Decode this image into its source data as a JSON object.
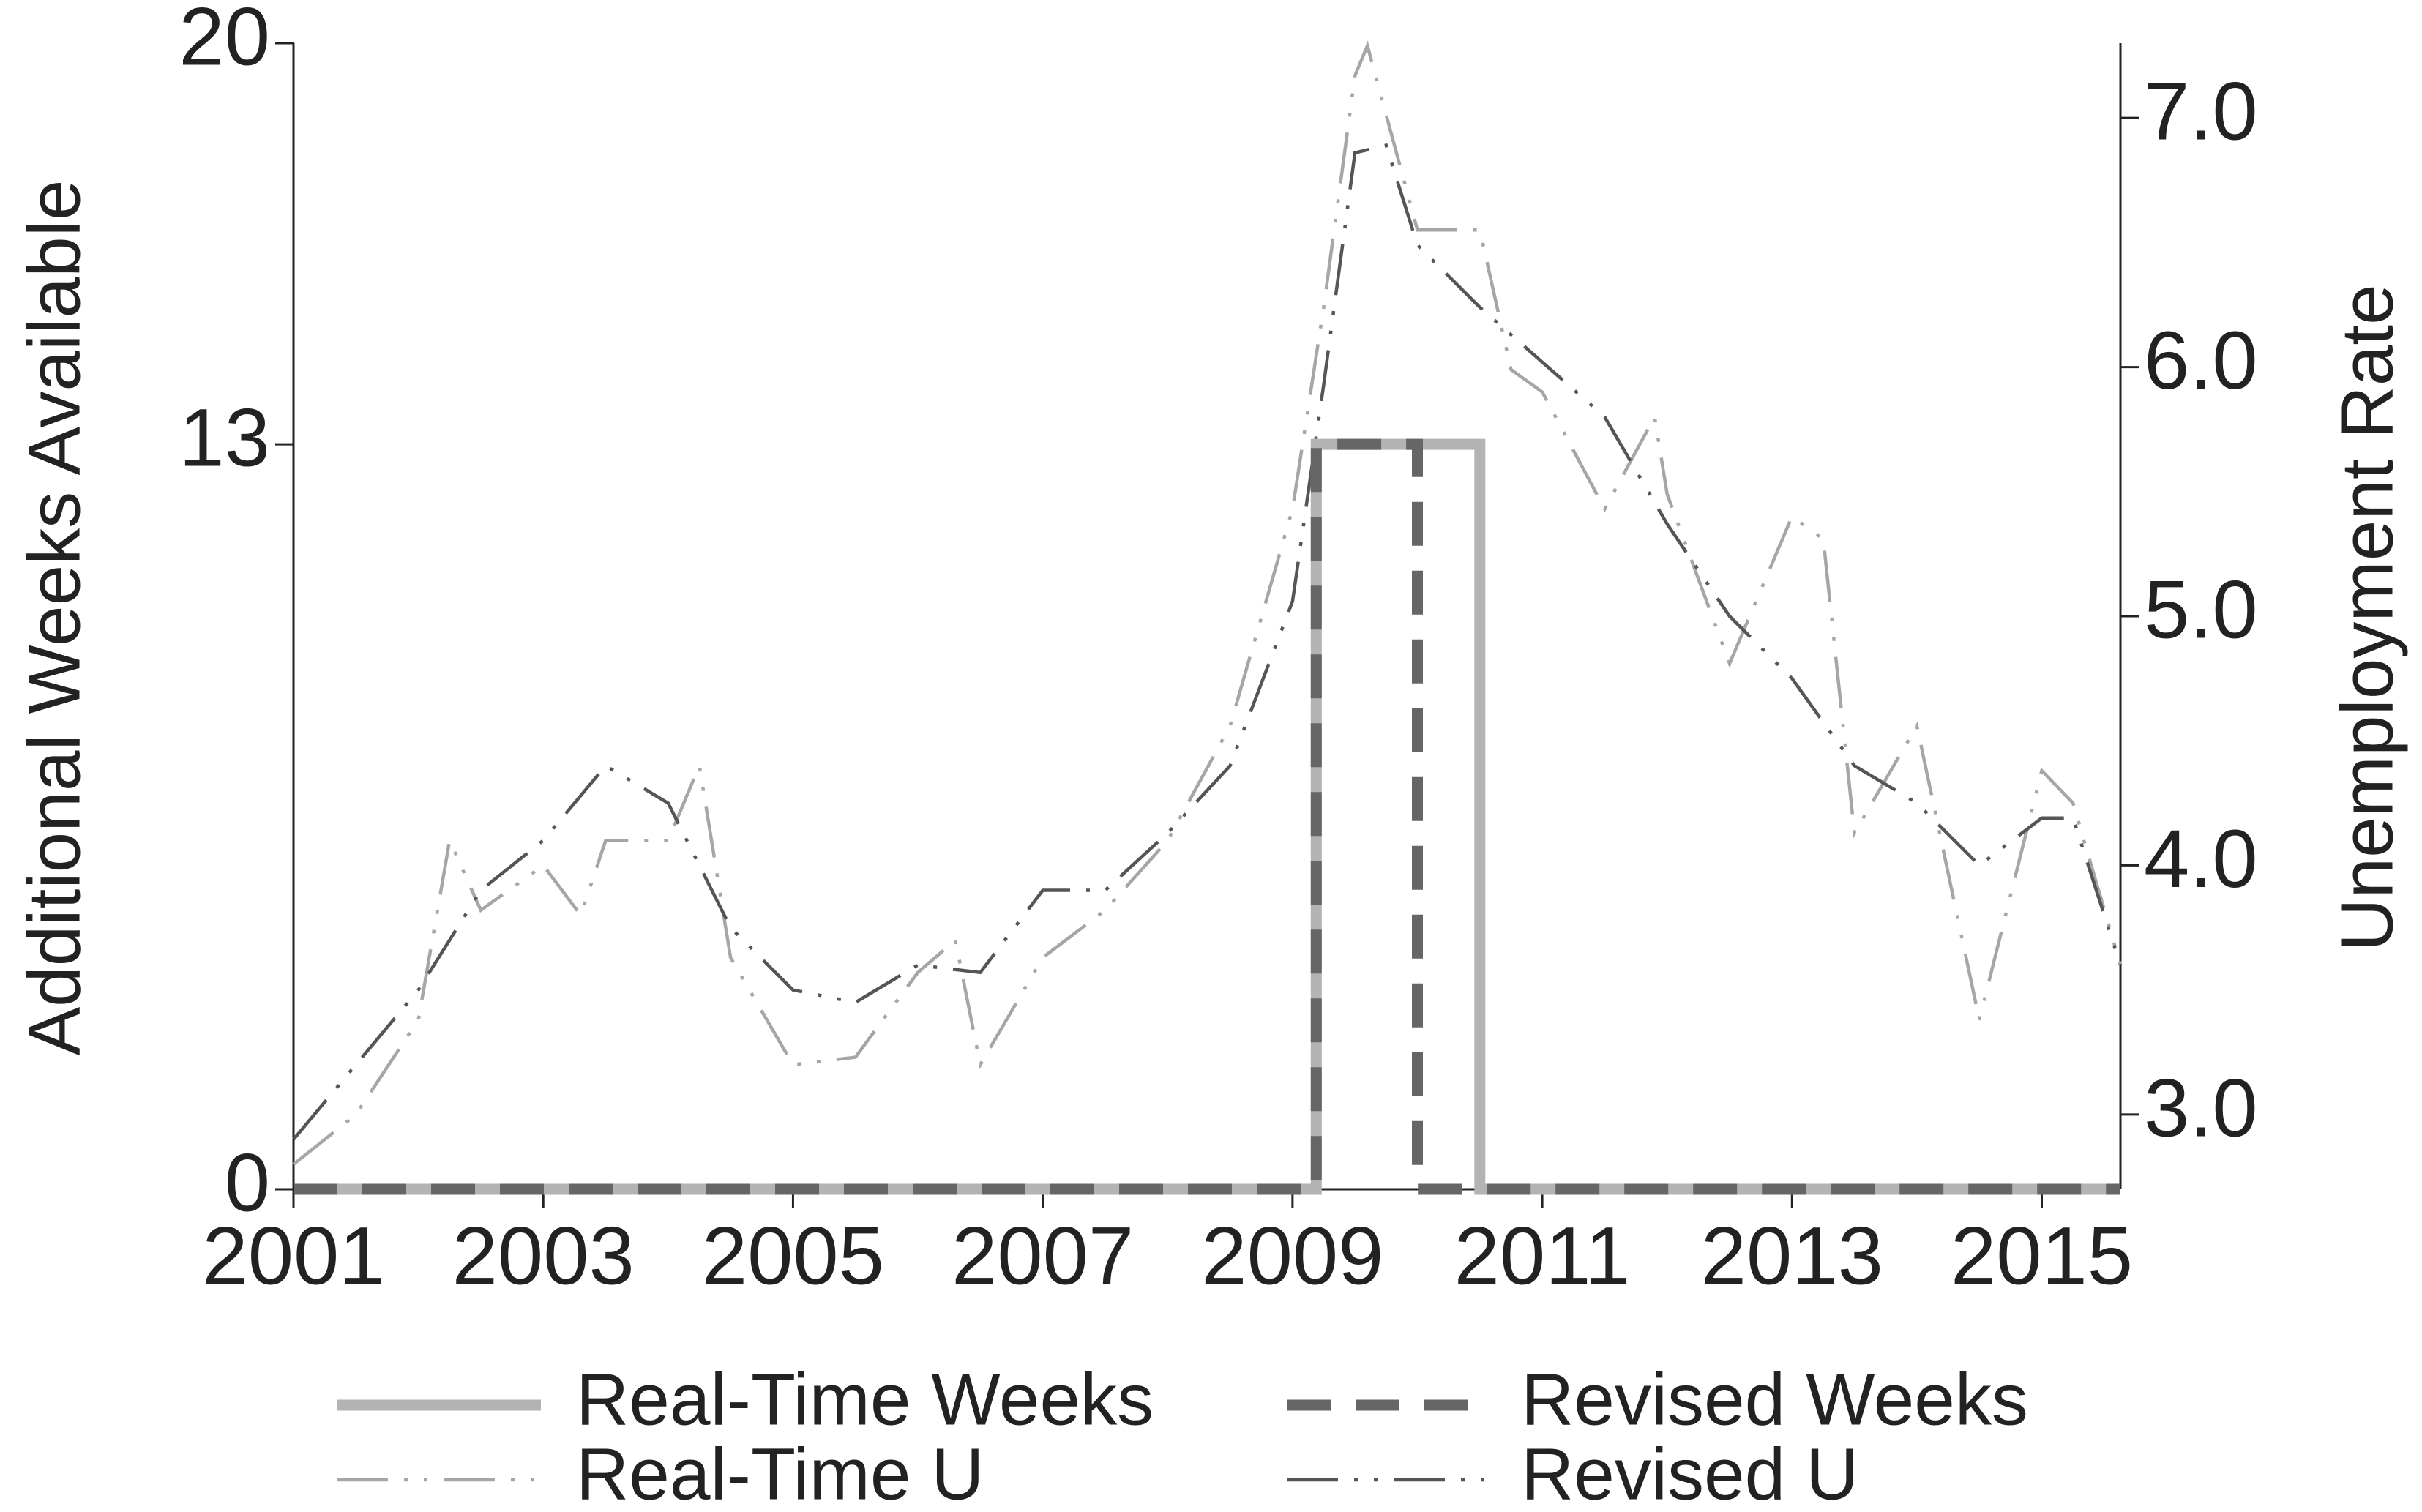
{
  "chart_data": {
    "type": "line",
    "ylabel": "Additional Weeks Available",
    "y2label": "Unemployment Rate",
    "xlim": [
      2001,
      2015.63
    ],
    "xticks": [
      2001,
      2003,
      2005,
      2007,
      2009,
      2011,
      2013,
      2015
    ],
    "ylim": [
      0,
      20
    ],
    "yticks": [
      0,
      13,
      20
    ],
    "y2lim": [
      2.7,
      7.3
    ],
    "y2ticks": [
      {
        "value": 3,
        "label": "3.0"
      },
      {
        "value": 4,
        "label": "4.0"
      },
      {
        "value": 5,
        "label": "5.0"
      },
      {
        "value": 6,
        "label": "6.0"
      },
      {
        "value": 7,
        "label": "7.0"
      }
    ],
    "grid": false,
    "legend": "bottom",
    "series": [
      {
        "name": "Real-Time Weeks",
        "color": "#b3b3b3",
        "linestyle": "solid",
        "x": [
          2001,
          2009.19,
          2009.19,
          2010.5,
          2010.5,
          2015.63
        ],
        "values": [
          0,
          0,
          13,
          13,
          0,
          0
        ]
      },
      {
        "name": "Revised Weeks",
        "color": "#666666",
        "linestyle": "dashed",
        "x": [
          2001,
          2009.19,
          2009.19,
          2010.0,
          2010.0,
          2015.63
        ],
        "values": [
          0,
          0,
          13,
          13,
          0,
          0
        ]
      },
      {
        "name": "Real-Time U",
        "color": "#a6a6a6",
        "linestyle": "dashdot",
        "axis": "y2",
        "x": [
          2001,
          2001.5,
          2002,
          2002.25,
          2002.5,
          2003,
          2003.3,
          2003.5,
          2004,
          2004.25,
          2004.5,
          2005,
          2005.5,
          2006,
          2006.3,
          2006.5,
          2007,
          2007.5,
          2008,
          2008.5,
          2009,
          2009.25,
          2009.5,
          2009.6,
          2010,
          2010.5,
          2010.75,
          2011,
          2011.5,
          2011.9,
          2012,
          2012.5,
          2013,
          2013.25,
          2013.5,
          2014,
          2014.5,
          2015,
          2015.25,
          2015.63
        ],
        "values": [
          2.8,
          3.0,
          3.38,
          4.1,
          3.82,
          4.0,
          3.8,
          4.1,
          4.1,
          4.4,
          3.63,
          3.2,
          3.23,
          3.57,
          3.7,
          3.2,
          3.63,
          3.82,
          4.1,
          4.56,
          5.43,
          6.24,
          7.17,
          7.29,
          6.55,
          6.55,
          5.99,
          5.9,
          5.43,
          5.8,
          5.49,
          4.81,
          5.4,
          5.31,
          4.13,
          4.56,
          3.38,
          4.38,
          4.25,
          3.6
        ]
      },
      {
        "name": "Revised U",
        "color": "#555555",
        "linestyle": "dashdot",
        "axis": "y2",
        "x": [
          2001,
          2001.5,
          2002,
          2002.5,
          2003,
          2003.5,
          2004,
          2004.5,
          2005,
          2005.5,
          2006,
          2006.5,
          2007,
          2007.5,
          2008,
          2008.5,
          2009,
          2009.25,
          2009.5,
          2009.75,
          2010,
          2010.5,
          2011,
          2011.5,
          2012,
          2012.5,
          2013,
          2013.5,
          2014,
          2014.5,
          2015,
          2015.25,
          2015.63
        ],
        "values": [
          2.9,
          3.2,
          3.5,
          3.9,
          4.1,
          4.4,
          4.25,
          3.75,
          3.5,
          3.45,
          3.6,
          3.57,
          3.9,
          3.9,
          4.13,
          4.4,
          5.06,
          5.93,
          6.86,
          6.89,
          6.49,
          6.24,
          6.02,
          5.8,
          5.37,
          5.0,
          4.75,
          4.4,
          4.25,
          4.0,
          4.19,
          4.19,
          3.6
        ]
      }
    ]
  }
}
